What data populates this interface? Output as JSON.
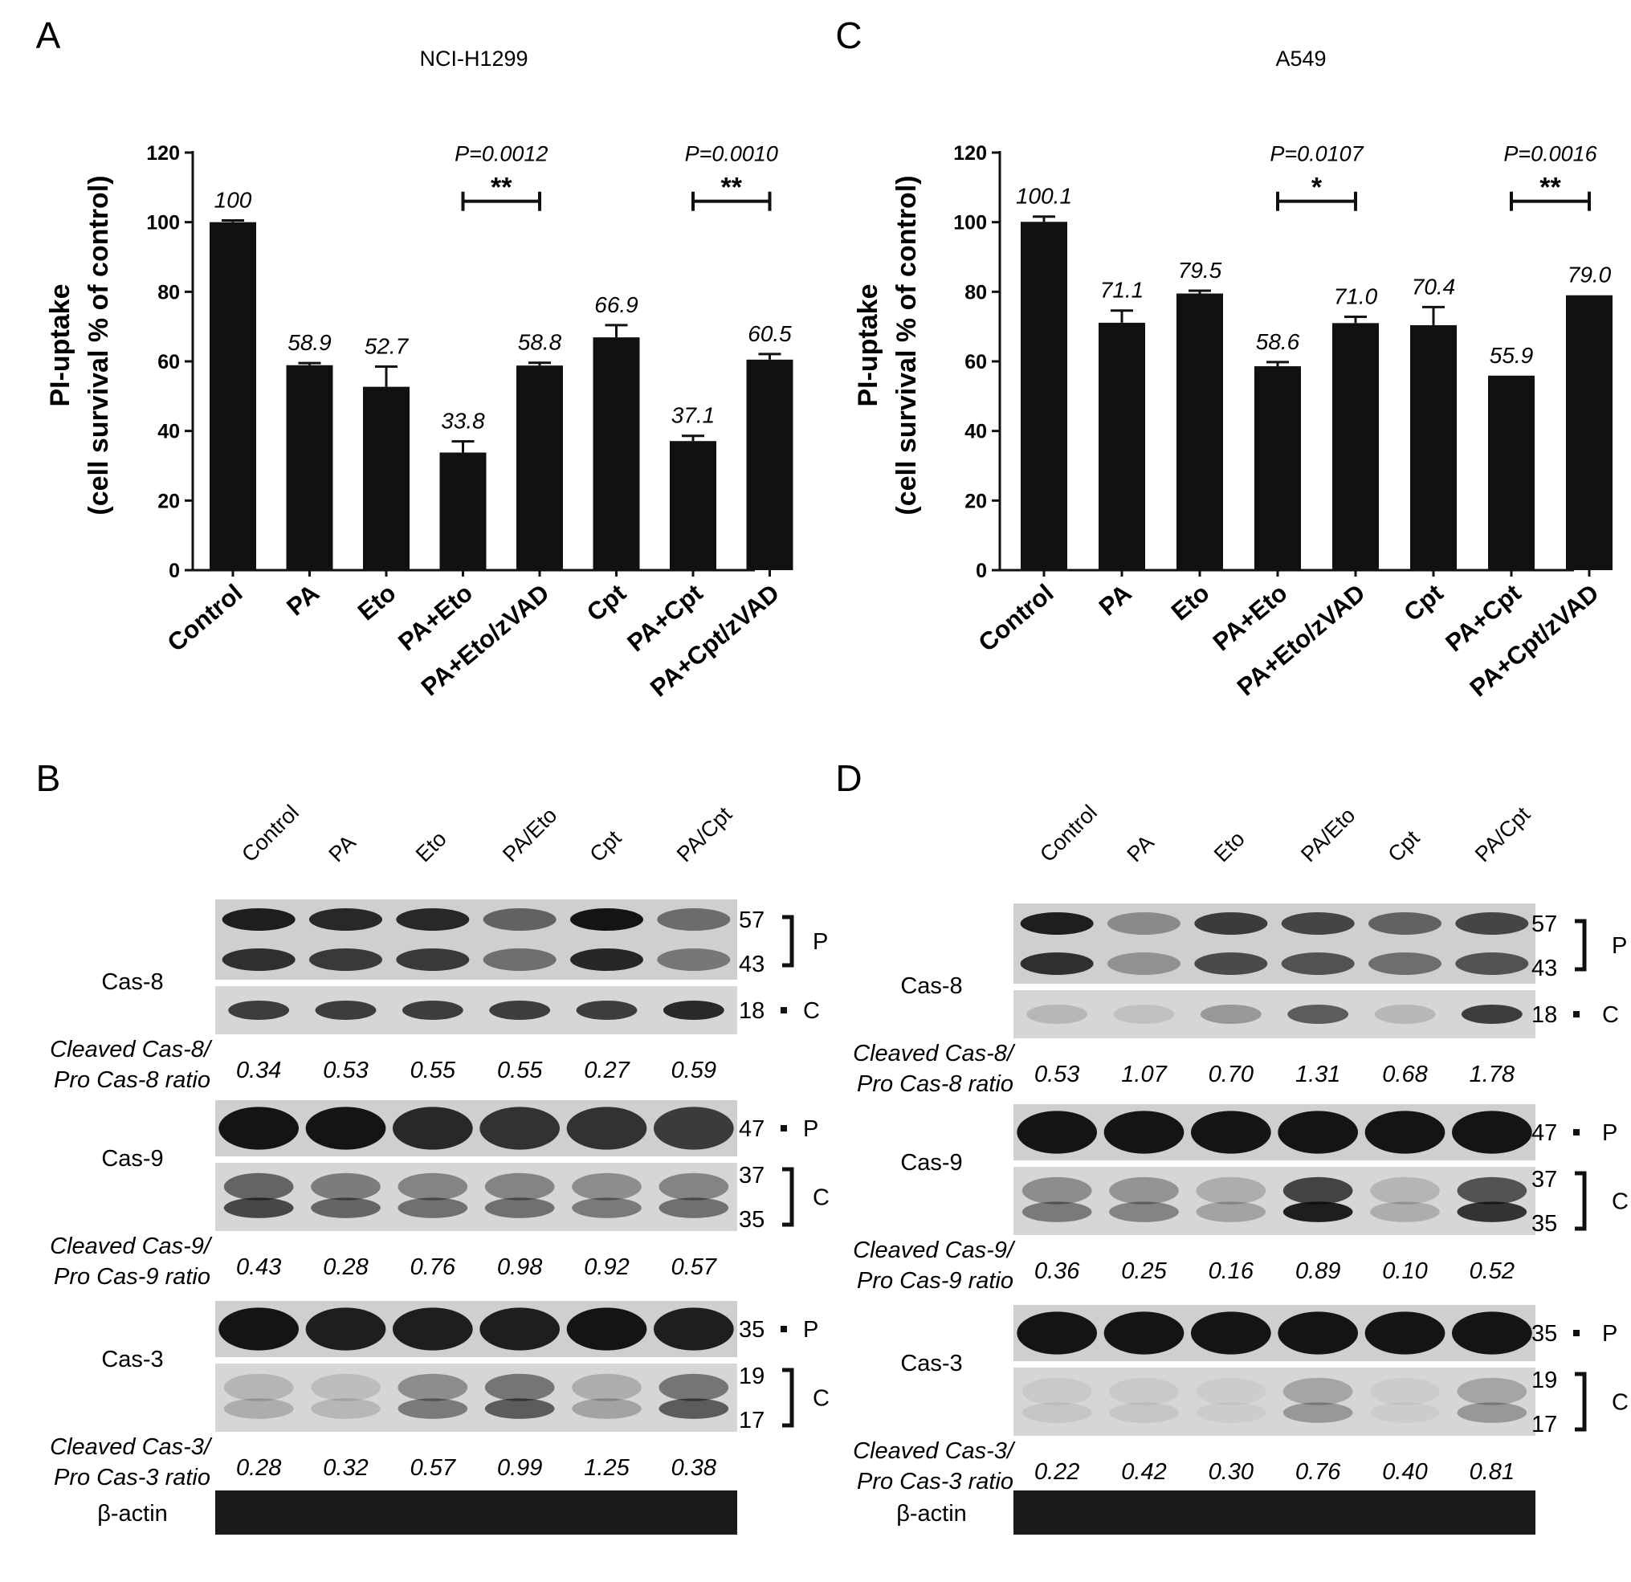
{
  "chart_data": [
    {
      "panel": "A",
      "type": "bar",
      "title": "NCI-H1299",
      "ylabel": "PI-uptake",
      "ylabel2": "(cell survival % of control)",
      "ylim": [
        0,
        120
      ],
      "yticks": [
        "0",
        "20",
        "40",
        "60",
        "80",
        "100",
        "120"
      ],
      "categories": [
        "Control",
        "PA",
        "Eto",
        "PA+Eto",
        "PA+Eto/zVAD",
        "Cpt",
        "PA+Cpt",
        "PA+Cpt/zVAD"
      ],
      "values": [
        100,
        58.9,
        52.7,
        33.8,
        58.8,
        66.9,
        37.1,
        60.5
      ],
      "value_labels": [
        "100",
        "58.9",
        "52.7",
        "33.8",
        "58.8",
        "66.9",
        "37.1",
        "60.5"
      ],
      "errors": [
        0.5,
        0.6,
        5.8,
        3.2,
        0.8,
        3.5,
        1.5,
        1.6
      ],
      "bar_color": "#111111",
      "comparisons": [
        {
          "from": 3,
          "to": 4,
          "p_label": "P=0.0012",
          "stars": "**"
        },
        {
          "from": 6,
          "to": 7,
          "p_label": "P=0.0010",
          "stars": "**"
        }
      ]
    },
    {
      "panel": "C",
      "type": "bar",
      "title": "A549",
      "ylabel": "PI-uptake",
      "ylabel2": "(cell survival % of control)",
      "ylim": [
        0,
        120
      ],
      "yticks": [
        "0",
        "20",
        "40",
        "60",
        "80",
        "100",
        "120"
      ],
      "categories": [
        "Control",
        "PA",
        "Eto",
        "PA+Eto",
        "PA+Eto/zVAD",
        "Cpt",
        "PA+Cpt",
        "PA+Cpt/zVAD"
      ],
      "values": [
        100.1,
        71.1,
        79.5,
        58.6,
        71.0,
        70.4,
        55.9,
        79.0
      ],
      "value_labels": [
        "100.1",
        "71.1",
        "79.5",
        "58.6",
        "71.0",
        "70.4",
        "55.9",
        "79.0"
      ],
      "errors": [
        1.5,
        3.5,
        0.8,
        1.2,
        1.8,
        5.2,
        0,
        0
      ],
      "bar_color": "#111111",
      "comparisons": [
        {
          "from": 3,
          "to": 4,
          "p_label": "P=0.0107",
          "stars": "*"
        },
        {
          "from": 6,
          "to": 7,
          "p_label": "P=0.0016",
          "stars": "**"
        }
      ]
    }
  ],
  "blots": [
    {
      "panel": "B",
      "lanes": [
        "Control",
        "PA",
        "Eto",
        "PA/Eto",
        "Cpt",
        "PA/Cpt"
      ],
      "beta_actin_label": "β-actin",
      "rows": [
        {
          "protein": "Cas-8",
          "pro_mw": [
            "57",
            "43"
          ],
          "pro_code": "P",
          "cleaved_mw": [
            "18"
          ],
          "cleaved_code": "C",
          "ratio_label_1": "Cleaved Cas-8/",
          "ratio_label_2": "Pro Cas-8 ratio",
          "ratios": [
            "0.34",
            "0.53",
            "0.55",
            "0.55",
            "0.27",
            "0.59"
          ],
          "pro_intensity": [
            0.9,
            0.85,
            0.85,
            0.55,
            0.95,
            0.5
          ],
          "cleaved_intensity": [
            0.75,
            0.75,
            0.75,
            0.75,
            0.75,
            0.85
          ]
        },
        {
          "protein": "Cas-9",
          "pro_mw": [
            "47"
          ],
          "pro_code": "P",
          "cleaved_mw": [
            "37",
            "35"
          ],
          "cleaved_code": "C",
          "ratio_label_1": "Cleaved Cas-9/",
          "ratio_label_2": "Pro Cas-9 ratio",
          "ratios": [
            "0.43",
            "0.28",
            "0.76",
            "0.98",
            "0.92",
            "0.57"
          ],
          "pro_intensity": [
            0.95,
            0.95,
            0.85,
            0.8,
            0.8,
            0.75
          ],
          "cleaved_intensity": [
            0.7,
            0.55,
            0.5,
            0.5,
            0.45,
            0.5
          ]
        },
        {
          "protein": "Cas-3",
          "pro_mw": [
            "35"
          ],
          "pro_code": "P",
          "cleaved_mw": [
            "19",
            "17"
          ],
          "cleaved_code": "C",
          "ratio_label_1": "Cleaved Cas-3/",
          "ratio_label_2": "Pro Cas-3 ratio",
          "ratios": [
            "0.28",
            "0.32",
            "0.57",
            "0.99",
            "1.25",
            "0.38"
          ],
          "pro_intensity": [
            0.95,
            0.9,
            0.9,
            0.9,
            0.95,
            0.9
          ],
          "cleaved_intensity": [
            0.2,
            0.15,
            0.45,
            0.6,
            0.25,
            0.6
          ]
        }
      ]
    },
    {
      "panel": "D",
      "lanes": [
        "Control",
        "PA",
        "Eto",
        "PA/Eto",
        "Cpt",
        "PA/Cpt"
      ],
      "beta_actin_label": "β-actin",
      "rows": [
        {
          "protein": "Cas-8",
          "pro_mw": [
            "57",
            "43"
          ],
          "pro_code": "P",
          "cleaved_mw": [
            "18"
          ],
          "cleaved_code": "C",
          "ratio_label_1": "Cleaved Cas-8/",
          "ratio_label_2": "Pro Cas-8 ratio",
          "ratios": [
            "0.53",
            "1.07",
            "0.70",
            "1.31",
            "0.68",
            "1.78"
          ],
          "pro_intensity": [
            0.9,
            0.35,
            0.75,
            0.7,
            0.55,
            0.7
          ],
          "cleaved_intensity": [
            0.15,
            0.1,
            0.3,
            0.6,
            0.15,
            0.75
          ]
        },
        {
          "protein": "Cas-9",
          "pro_mw": [
            "47"
          ],
          "pro_code": "P",
          "cleaved_mw": [
            "37",
            "35"
          ],
          "cleaved_code": "C",
          "ratio_label_1": "Cleaved Cas-9/",
          "ratio_label_2": "Pro Cas-9 ratio",
          "ratios": [
            "0.36",
            "0.25",
            "0.16",
            "0.89",
            "0.10",
            "0.52"
          ],
          "pro_intensity": [
            0.95,
            0.95,
            0.95,
            0.95,
            0.95,
            0.95
          ],
          "cleaved_intensity": [
            0.45,
            0.4,
            0.25,
            0.9,
            0.2,
            0.8
          ]
        },
        {
          "protein": "Cas-3",
          "pro_mw": [
            "35"
          ],
          "pro_code": "P",
          "cleaved_mw": [
            "19",
            "17"
          ],
          "cleaved_code": "C",
          "ratio_label_1": "Cleaved Cas-3/",
          "ratio_label_2": "Pro Cas-3 ratio",
          "ratios": [
            "0.22",
            "0.42",
            "0.30",
            "0.76",
            "0.40",
            "0.81"
          ],
          "pro_intensity": [
            0.95,
            0.95,
            0.95,
            0.95,
            0.95,
            0.95
          ],
          "cleaved_intensity": [
            0.08,
            0.08,
            0.05,
            0.3,
            0.05,
            0.3
          ]
        }
      ]
    }
  ]
}
